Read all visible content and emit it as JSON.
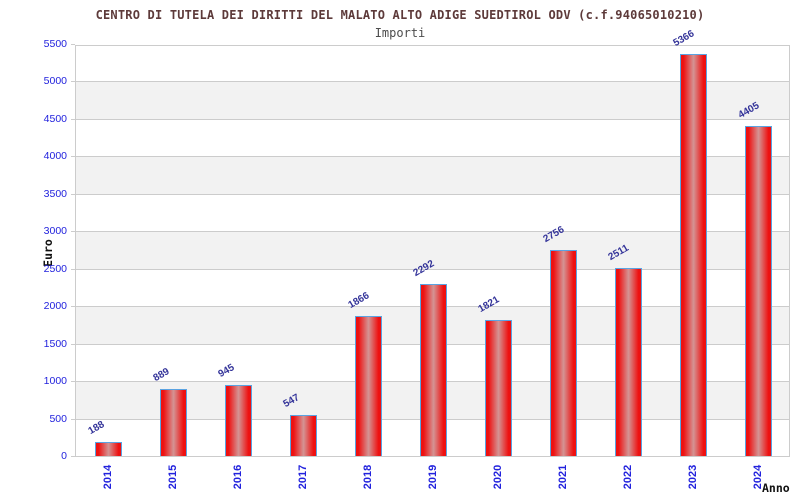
{
  "title": "CENTRO DI TUTELA DEI DIRITTI DEL MALATO ALTO ADIGE SUEDTIROL ODV (c.f.94065010210)",
  "subtitle": "Importi",
  "ylabel": "Euro",
  "xlabel": "Anno",
  "chart_data": {
    "type": "bar",
    "categories": [
      "2014",
      "2015",
      "2016",
      "2017",
      "2018",
      "2019",
      "2020",
      "2021",
      "2022",
      "2023",
      "2024"
    ],
    "values": [
      188,
      889,
      945,
      547,
      1866,
      2292,
      1821,
      2756,
      2511,
      5366,
      4405
    ],
    "title": "CENTRO DI TUTELA DEI DIRITTI DEL MALATO ALTO ADIGE SUEDTIROL ODV (c.f.94065010210)",
    "subtitle": "Importi",
    "xlabel": "Anno",
    "ylabel": "Euro",
    "ylim": [
      0,
      5500
    ],
    "ytick_step": 500,
    "grid": true,
    "bands": true,
    "legend": "none",
    "bar_value_labels": true
  },
  "colors": {
    "title": "#5d3a3a",
    "subtitle": "#4d4d4d",
    "axis_tick_text": "#2222dd",
    "value_label": "#333399",
    "bar_main": "#ee1111",
    "bar_highlight": "#d49494",
    "bar_border": "#5aa3e2",
    "gridline": "#cccccc",
    "band": "#f2f2f2",
    "axis_title_text": "#111111",
    "background": "#ffffff"
  }
}
